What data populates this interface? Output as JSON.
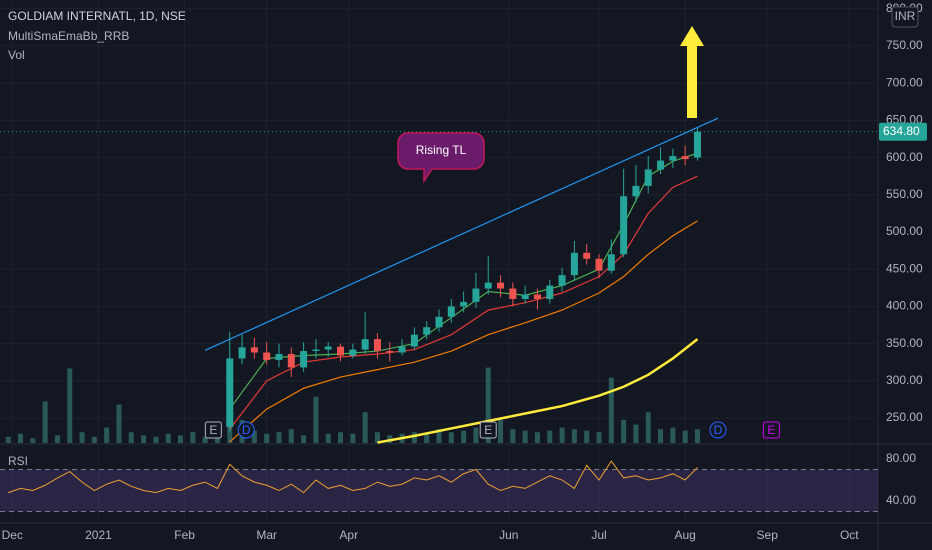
{
  "chart_data": {
    "type": "candlestick",
    "title": "GOLDIAM INTERNATL, 1D, NSE",
    "indicator_label": "MultiSmaEmaBb_RRB",
    "volume_label": "Vol",
    "currency": "INR",
    "up_color": "#26a69a",
    "down_color": "#ef5350",
    "x": [
      56,
      59,
      62,
      65,
      68,
      71,
      74,
      77,
      80,
      83,
      86,
      89,
      92,
      95,
      98,
      101,
      104,
      107,
      110,
      113,
      116,
      119,
      122,
      125,
      128,
      131,
      134,
      137,
      140,
      143,
      146,
      149,
      152,
      155,
      158,
      161,
      164,
      167,
      170
    ],
    "open": [
      238,
      330,
      345,
      338,
      328,
      336,
      318,
      340,
      342,
      346,
      334,
      342,
      356,
      340,
      338,
      346,
      362,
      372,
      386,
      400,
      406,
      424,
      432,
      424,
      410,
      416,
      410,
      428,
      442,
      472,
      464,
      448,
      470,
      548,
      562,
      584,
      596,
      602,
      600
    ],
    "high": [
      366,
      362,
      358,
      352,
      350,
      345,
      352,
      356,
      352,
      350,
      350,
      392,
      364,
      352,
      356,
      372,
      380,
      396,
      410,
      420,
      445,
      468,
      442,
      432,
      428,
      424,
      436,
      452,
      488,
      484,
      470,
      490,
      585,
      590,
      602,
      614,
      612,
      616,
      640
    ],
    "low": [
      232,
      322,
      330,
      322,
      318,
      305,
      312,
      330,
      332,
      326,
      330,
      336,
      330,
      326,
      334,
      342,
      356,
      366,
      378,
      392,
      398,
      416,
      412,
      400,
      404,
      396,
      404,
      420,
      436,
      456,
      438,
      444,
      466,
      540,
      552,
      578,
      586,
      590,
      596
    ],
    "close": [
      330,
      345,
      338,
      328,
      336,
      318,
      340,
      342,
      346,
      334,
      342,
      356,
      340,
      338,
      346,
      362,
      372,
      386,
      400,
      406,
      424,
      432,
      424,
      410,
      416,
      410,
      428,
      442,
      472,
      464,
      448,
      470,
      548,
      562,
      584,
      596,
      602,
      598,
      634.8
    ],
    "price_line": {
      "value": 634.8,
      "label": "634.80"
    },
    "xlim": [
      0,
      214
    ],
    "ylim": [
      216.4,
      811.8
    ],
    "yticks": [
      {
        "value": 800,
        "label": "800.00"
      },
      {
        "value": 750,
        "label": "750.00"
      },
      {
        "value": 700,
        "label": "700.00"
      },
      {
        "value": 650,
        "label": "650.00"
      },
      {
        "value": 600,
        "label": "600.00"
      },
      {
        "value": 550,
        "label": "550.00"
      },
      {
        "value": 500,
        "label": "500.00"
      },
      {
        "value": 450,
        "label": "450.00"
      },
      {
        "value": 400,
        "label": "400.00"
      },
      {
        "value": 350,
        "label": "350.00"
      },
      {
        "value": 300,
        "label": "300.00"
      },
      {
        "value": 250,
        "label": "250.00"
      }
    ],
    "xticks": [
      {
        "value": 3,
        "label": "Dec"
      },
      {
        "value": 24,
        "label": "2021"
      },
      {
        "value": 45,
        "label": "Feb"
      },
      {
        "value": 65,
        "label": "Mar"
      },
      {
        "value": 85,
        "label": "Apr"
      },
      {
        "value": 124,
        "label": "Jun"
      },
      {
        "value": 146,
        "label": "Jul"
      },
      {
        "value": 167,
        "label": "Aug"
      },
      {
        "value": 187,
        "label": "Sep"
      },
      {
        "value": 207,
        "label": "Oct"
      }
    ],
    "grid": true,
    "overlays": [
      {
        "color": "#4caf50",
        "x": [
          56,
          65,
          74,
          83,
          92,
          101,
          110,
          119,
          128,
          137,
          146,
          152,
          158,
          164,
          170
        ],
        "values": [
          262,
          330,
          334,
          336,
          340,
          350,
          385,
          420,
          415,
          428,
          450,
          510,
          575,
          595,
          606
        ]
      },
      {
        "color": "#e53935",
        "x": [
          56,
          65,
          74,
          83,
          92,
          101,
          110,
          119,
          128,
          137,
          146,
          152,
          158,
          164,
          170
        ],
        "values": [
          235,
          300,
          325,
          332,
          336,
          342,
          362,
          395,
          405,
          418,
          440,
          470,
          525,
          560,
          575
        ]
      },
      {
        "color": "#f57c00",
        "x": [
          56,
          65,
          74,
          83,
          92,
          101,
          110,
          119,
          128,
          137,
          146,
          152,
          158,
          164,
          170
        ],
        "values": [
          218,
          262,
          290,
          305,
          315,
          325,
          340,
          362,
          378,
          395,
          418,
          440,
          470,
          495,
          515
        ]
      },
      {
        "color": "#ffeb3b",
        "x": [
          92,
          101,
          110,
          119,
          128,
          137,
          146,
          152,
          158,
          164,
          170
        ],
        "values": [
          217,
          226,
          236,
          246,
          256,
          266,
          280,
          292,
          308,
          330,
          356
        ]
      }
    ],
    "trendline": {
      "color": "#2196f3",
      "x": [
        50,
        175
      ],
      "values": [
        341,
        653
      ]
    },
    "annotation": "Rising TL",
    "events": [
      {
        "label": "E",
        "x": 52,
        "color": "#b2b5be"
      },
      {
        "label": "D",
        "x": 60,
        "color": "#2962ff"
      },
      {
        "label": "E",
        "x": 119,
        "color": "#b2b5be"
      },
      {
        "label": "D",
        "x": 175,
        "color": "#2962ff"
      },
      {
        "label": "E",
        "x": 188,
        "color": "#d500f9"
      }
    ],
    "volume": {
      "color": "#2f6b66",
      "vlim": [
        0,
        130
      ],
      "x": [
        2,
        5,
        8,
        11,
        14,
        17,
        20,
        23,
        26,
        29,
        32,
        35,
        38,
        41,
        44,
        47,
        50,
        53,
        56,
        59,
        62,
        65,
        68,
        71,
        74,
        77,
        80,
        83,
        86,
        89,
        92,
        95,
        98,
        101,
        104,
        107,
        110,
        113,
        116,
        119,
        122,
        125,
        128,
        131,
        134,
        137,
        140,
        143,
        146,
        149,
        152,
        155,
        158,
        161,
        164,
        167,
        170
      ],
      "values": [
        8,
        12,
        6,
        54,
        10,
        97,
        14,
        8,
        20,
        50,
        14,
        10,
        8,
        12,
        10,
        14,
        8,
        12,
        60,
        30,
        16,
        12,
        14,
        18,
        10,
        60,
        12,
        14,
        12,
        40,
        14,
        10,
        12,
        14,
        12,
        18,
        14,
        16,
        20,
        98,
        30,
        18,
        16,
        14,
        16,
        20,
        18,
        16,
        14,
        85,
        30,
        24,
        40,
        18,
        20,
        16,
        18
      ]
    },
    "rsi": {
      "label": "RSI",
      "color": "#f0a030",
      "band_color": "#7e57c2",
      "ylim": [
        20,
        90.5
      ],
      "band": [
        30,
        70
      ],
      "yticks": [
        {
          "value": 80,
          "label": "80.00"
        },
        {
          "value": 40,
          "label": "40.00"
        }
      ],
      "x": [
        2,
        5,
        8,
        11,
        14,
        17,
        20,
        23,
        26,
        29,
        32,
        35,
        38,
        41,
        44,
        47,
        50,
        53,
        56,
        59,
        62,
        65,
        68,
        71,
        74,
        77,
        80,
        83,
        86,
        89,
        92,
        95,
        98,
        101,
        104,
        107,
        110,
        113,
        116,
        119,
        122,
        125,
        128,
        131,
        134,
        137,
        140,
        143,
        146,
        149,
        152,
        155,
        158,
        161,
        164,
        167,
        170
      ],
      "values": [
        48,
        52,
        50,
        55,
        62,
        68,
        58,
        50,
        56,
        60,
        54,
        50,
        48,
        52,
        50,
        55,
        58,
        52,
        75,
        64,
        58,
        55,
        50,
        56,
        48,
        60,
        52,
        55,
        50,
        52,
        58,
        54,
        56,
        62,
        60,
        64,
        58,
        66,
        70,
        56,
        50,
        54,
        52,
        58,
        64,
        60,
        52,
        74,
        60,
        78,
        62,
        64,
        60,
        62,
        66,
        60,
        72
      ]
    }
  }
}
